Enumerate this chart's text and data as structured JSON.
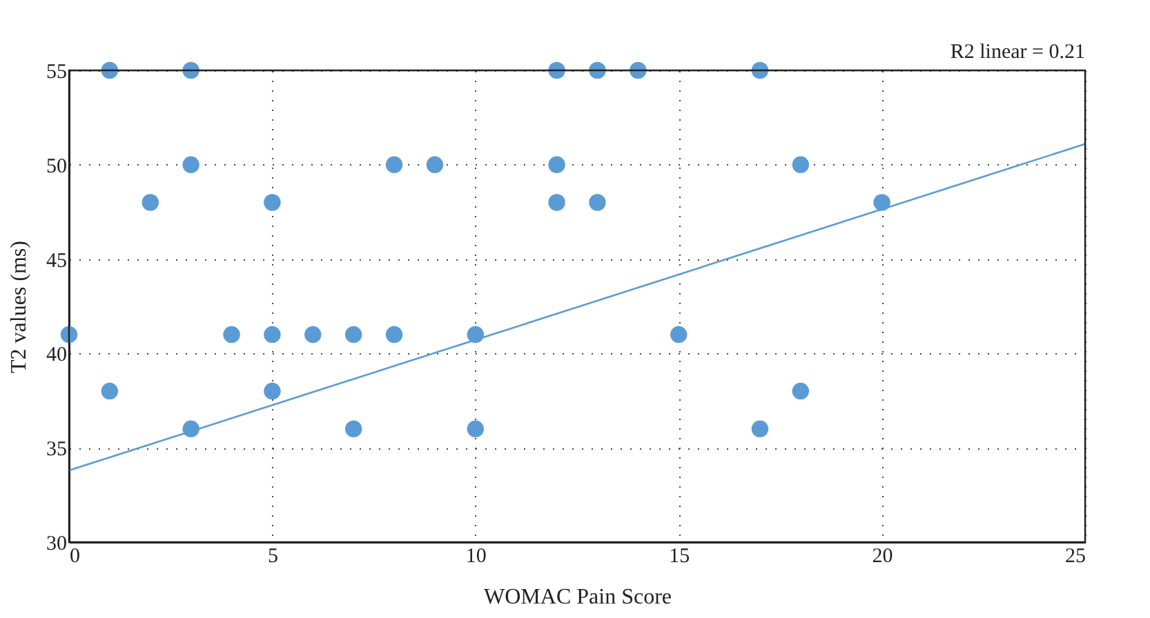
{
  "chart_data": {
    "type": "scatter",
    "xlabel": "WOMAC Pain Score",
    "ylabel": "T2 values (ms)",
    "annotations": [
      "R2 linear = 0.21"
    ],
    "xlim": [
      0,
      25
    ],
    "xticks": [
      0,
      5,
      10,
      15,
      20,
      25
    ],
    "ylim": [
      30,
      55
    ],
    "yticks": [
      30,
      35,
      40,
      45,
      50,
      55
    ],
    "grid": true,
    "series": [
      {
        "color": "#5b9bd5",
        "marker": "circle",
        "x": [
          0,
          1,
          1,
          2,
          3,
          3,
          3,
          4,
          5,
          5,
          5,
          6,
          7,
          7,
          8,
          8,
          9,
          10,
          10,
          12,
          12,
          12,
          13,
          13,
          14,
          15,
          17,
          17,
          18,
          18,
          20
        ],
        "values": [
          41,
          55,
          38,
          48,
          55,
          50,
          36,
          41,
          48,
          41,
          38,
          41,
          41,
          36,
          50,
          41,
          50,
          41,
          36,
          55,
          50,
          48,
          55,
          48,
          55,
          41,
          55,
          36,
          50,
          38,
          48
        ]
      },
      {
        "type": "line",
        "color": "#5b9bd5",
        "x": [
          0,
          25
        ],
        "values": [
          33.8,
          51.1
        ],
        "marker": "none",
        "line_style": "solid"
      }
    ]
  }
}
